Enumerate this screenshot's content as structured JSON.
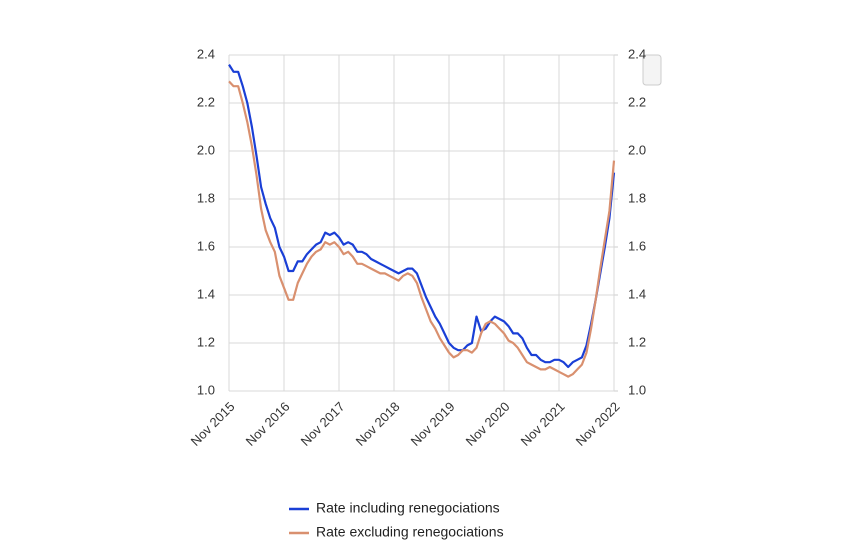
{
  "chart_data": {
    "type": "line",
    "categories": [
      "Nov 2015",
      null,
      null,
      null,
      null,
      null,
      null,
      null,
      null,
      null,
      null,
      null,
      "Nov 2016",
      null,
      null,
      null,
      null,
      null,
      null,
      null,
      null,
      null,
      null,
      null,
      "Nov 2017",
      null,
      null,
      null,
      null,
      null,
      null,
      null,
      null,
      null,
      null,
      null,
      "Nov 2018",
      null,
      null,
      null,
      null,
      null,
      null,
      null,
      null,
      null,
      null,
      null,
      "Nov 2019",
      null,
      null,
      null,
      null,
      null,
      null,
      null,
      null,
      null,
      null,
      null,
      "Nov 2020",
      null,
      null,
      null,
      null,
      null,
      null,
      null,
      null,
      null,
      null,
      null,
      "Nov 2021",
      null,
      null,
      null,
      null,
      null,
      null,
      null,
      null,
      null,
      null,
      null,
      "Nov 2022"
    ],
    "series": [
      {
        "name": "Rate including renegociations",
        "color": "#1a3fd6",
        "values": [
          2.36,
          2.33,
          2.33,
          2.27,
          2.2,
          2.1,
          1.98,
          1.85,
          1.78,
          1.72,
          1.68,
          1.6,
          1.56,
          1.5,
          1.5,
          1.54,
          1.54,
          1.57,
          1.59,
          1.61,
          1.62,
          1.66,
          1.65,
          1.66,
          1.64,
          1.61,
          1.62,
          1.61,
          1.58,
          1.58,
          1.57,
          1.55,
          1.54,
          1.53,
          1.52,
          1.51,
          1.5,
          1.49,
          1.5,
          1.51,
          1.51,
          1.49,
          1.44,
          1.39,
          1.35,
          1.31,
          1.28,
          1.24,
          1.2,
          1.18,
          1.17,
          1.17,
          1.19,
          1.2,
          1.31,
          1.25,
          1.26,
          1.29,
          1.31,
          1.3,
          1.29,
          1.27,
          1.24,
          1.24,
          1.22,
          1.18,
          1.15,
          1.15,
          1.13,
          1.12,
          1.12,
          1.13,
          1.13,
          1.12,
          1.1,
          1.12,
          1.13,
          1.14,
          1.19,
          1.28,
          1.38,
          1.49,
          1.6,
          1.72,
          1.91
        ]
      },
      {
        "name": "Rate excluding renegociations",
        "color": "#d9906f",
        "values": [
          2.29,
          2.27,
          2.27,
          2.2,
          2.12,
          2.02,
          1.9,
          1.76,
          1.67,
          1.62,
          1.58,
          1.48,
          1.43,
          1.38,
          1.38,
          1.45,
          1.49,
          1.53,
          1.56,
          1.58,
          1.59,
          1.62,
          1.61,
          1.62,
          1.6,
          1.57,
          1.58,
          1.56,
          1.53,
          1.53,
          1.52,
          1.51,
          1.5,
          1.49,
          1.49,
          1.48,
          1.47,
          1.46,
          1.48,
          1.49,
          1.48,
          1.45,
          1.39,
          1.34,
          1.29,
          1.26,
          1.22,
          1.19,
          1.16,
          1.14,
          1.15,
          1.17,
          1.17,
          1.16,
          1.18,
          1.24,
          1.28,
          1.29,
          1.28,
          1.26,
          1.24,
          1.21,
          1.2,
          1.18,
          1.15,
          1.12,
          1.11,
          1.1,
          1.09,
          1.09,
          1.1,
          1.09,
          1.08,
          1.07,
          1.06,
          1.07,
          1.09,
          1.11,
          1.16,
          1.26,
          1.38,
          1.51,
          1.63,
          1.75,
          1.96
        ]
      }
    ],
    "ylim": [
      1.0,
      2.4
    ],
    "yticks": [
      {
        "value": 1.0,
        "label": "1.0"
      },
      1.2,
      1.4,
      1.6,
      1.8,
      {
        "value": 2.0,
        "label": "2.0"
      },
      2.2,
      2.4
    ],
    "y2lim": [
      1.0,
      2.4
    ],
    "y2ticks": [
      {
        "value": 1.0,
        "label": "1.0"
      },
      1.2,
      1.4,
      1.6,
      1.8,
      {
        "value": 2.0,
        "label": "2.0"
      },
      2.2,
      2.4
    ],
    "grid": true,
    "legend": "bottom"
  }
}
